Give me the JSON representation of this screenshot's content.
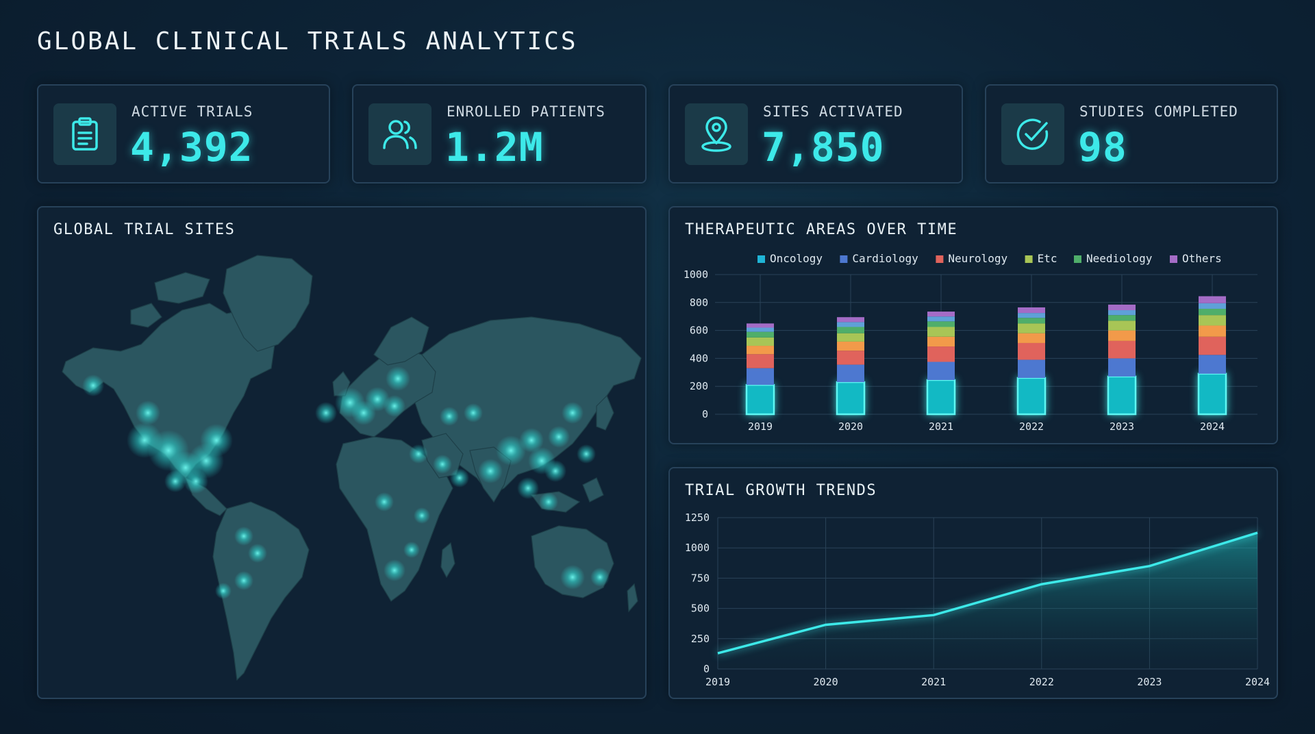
{
  "header": {
    "title": "GLOBAL CLINICAL TRIALS ANALYTICS"
  },
  "kpis": [
    {
      "label": "ACTIVE TRIALS",
      "value": "4,392",
      "icon": "clipboard-icon"
    },
    {
      "label": "ENROLLED PATIENTS",
      "value": "1.2M",
      "icon": "users-icon"
    },
    {
      "label": "SITES ACTIVATED",
      "value": "7,850",
      "icon": "location-pin-icon"
    },
    {
      "label": "STUDIES COMPLETED",
      "value": "98",
      "icon": "check-circle-icon"
    }
  ],
  "map_panel": {
    "title": "GLOBAL TRIAL SITES"
  },
  "colors": {
    "accent": "#3de9e9",
    "oncology": "#1fb4d6",
    "cardiology": "#4d78d0",
    "neurology": "#e0635c",
    "etc": "#a8c556",
    "neediology": "#4fae6a",
    "others": "#a46cc6"
  },
  "chart_data": [
    {
      "type": "bar",
      "stacked": true,
      "title": "THERAPEUTIC AREAS OVER TIME",
      "categories": [
        "2019",
        "2020",
        "2021",
        "2022",
        "2023",
        "2024"
      ],
      "ylim": [
        0,
        1000
      ],
      "yticks": [
        "0",
        "200",
        "400",
        "600",
        "800",
        "1000"
      ],
      "legend_position": "top",
      "series": [
        {
          "name": "Oncology",
          "color": "#1fb4d6",
          "values": [
            210,
            230,
            245,
            260,
            270,
            290
          ]
        },
        {
          "name": "Cardiology",
          "color": "#4d78d0",
          "values": [
            120,
            125,
            130,
            130,
            130,
            135
          ]
        },
        {
          "name": "Neurology",
          "color": "#e0635c",
          "values": [
            100,
            100,
            110,
            120,
            125,
            130
          ]
        },
        {
          "name": "Etc",
          "color": "#f29a4a",
          "values": [
            60,
            65,
            70,
            70,
            75,
            80
          ]
        },
        {
          "name": "Etc",
          "color": "#a8c556",
          "values": [
            60,
            60,
            70,
            70,
            70,
            75
          ]
        },
        {
          "name": "Neediology",
          "color": "#4fae6a",
          "values": [
            40,
            45,
            40,
            40,
            40,
            45
          ]
        },
        {
          "name": "Others",
          "color": "#5fa0d8",
          "values": [
            30,
            35,
            35,
            35,
            35,
            40
          ]
        },
        {
          "name": "Others",
          "color": "#a46cc6",
          "values": [
            30,
            35,
            35,
            40,
            40,
            50
          ]
        }
      ],
      "legend": [
        {
          "name": "Oncology",
          "color": "#1fb4d6"
        },
        {
          "name": "Cardiology",
          "color": "#4d78d0"
        },
        {
          "name": "Neurology",
          "color": "#e0635c"
        },
        {
          "name": "Etc",
          "color": "#a8c556"
        },
        {
          "name": "Neediology",
          "color": "#4fae6a"
        },
        {
          "name": "Others",
          "color": "#a46cc6"
        }
      ],
      "grid": true
    },
    {
      "type": "area",
      "title": "TRIAL GROWTH TRENDS",
      "x": [
        "2019",
        "2020",
        "2021",
        "2022",
        "2023",
        "2024"
      ],
      "y": [
        130,
        365,
        445,
        700,
        850,
        1125
      ],
      "ylim": [
        0,
        1250
      ],
      "yticks": [
        "0",
        "250",
        "500",
        "750",
        "1000",
        "1250"
      ],
      "grid": true
    }
  ]
}
